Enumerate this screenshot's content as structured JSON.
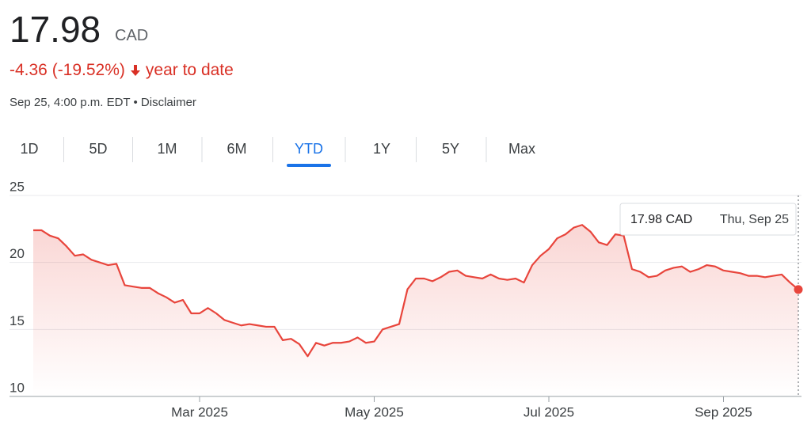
{
  "header": {
    "price": "17.98",
    "currency": "CAD",
    "change": "-4.36 (-19.52%)",
    "period": "year to date",
    "timestamp": "Sep 25, 4:00 p.m. EDT",
    "separator": "•",
    "disclaimer": "Disclaimer"
  },
  "tabs": [
    "1D",
    "5D",
    "1M",
    "6M",
    "YTD",
    "1Y",
    "5Y",
    "Max"
  ],
  "selected_tab": "YTD",
  "chart_data": {
    "type": "line",
    "color": "#e8453c",
    "categories": [
      null,
      null,
      null,
      null,
      null,
      null,
      null,
      null,
      null,
      null,
      null,
      null,
      null,
      null,
      null,
      null,
      null,
      null,
      null,
      null,
      "Mar 2025",
      null,
      null,
      null,
      null,
      null,
      null,
      null,
      null,
      null,
      null,
      null,
      null,
      null,
      null,
      null,
      null,
      null,
      null,
      null,
      null,
      "May 2025",
      null,
      null,
      null,
      null,
      null,
      null,
      null,
      null,
      null,
      null,
      null,
      null,
      null,
      null,
      null,
      null,
      null,
      null,
      null,
      null,
      "Jul 2025",
      null,
      null,
      null,
      null,
      null,
      null,
      null,
      null,
      null,
      null,
      null,
      null,
      null,
      null,
      null,
      null,
      null,
      null,
      null,
      null,
      "Sep 2025",
      null,
      null,
      null,
      null,
      null,
      null,
      null,
      null,
      null
    ],
    "values": [
      22.4,
      22.4,
      22.0,
      21.8,
      21.2,
      20.5,
      20.6,
      20.2,
      20.0,
      19.8,
      19.9,
      18.3,
      18.2,
      18.1,
      18.1,
      17.7,
      17.4,
      17.0,
      17.2,
      16.2,
      16.2,
      16.6,
      16.2,
      15.7,
      15.5,
      15.3,
      15.4,
      15.3,
      15.2,
      15.2,
      14.2,
      14.3,
      13.9,
      13.0,
      14.0,
      13.8,
      14.0,
      14.0,
      14.1,
      14.4,
      14.0,
      14.1,
      15.0,
      15.2,
      15.4,
      18.0,
      18.8,
      18.8,
      18.6,
      18.9,
      19.3,
      19.4,
      19.0,
      18.9,
      18.8,
      19.1,
      18.8,
      18.7,
      18.8,
      18.5,
      19.8,
      20.5,
      21.0,
      21.8,
      22.1,
      22.6,
      22.8,
      22.3,
      21.5,
      21.3,
      22.1,
      22.0,
      19.5,
      19.3,
      18.9,
      19.0,
      19.4,
      19.6,
      19.7,
      19.3,
      19.5,
      19.8,
      19.7,
      19.4,
      19.3,
      19.2,
      19.0,
      19.0,
      18.9,
      19.0,
      19.1,
      18.5,
      17.98
    ],
    "ylim": [
      10,
      25
    ],
    "yticks": [
      10,
      15,
      20,
      25
    ],
    "grid": true,
    "tooltip": {
      "value": "17.98 CAD",
      "date": "Thu, Sep 25"
    }
  }
}
